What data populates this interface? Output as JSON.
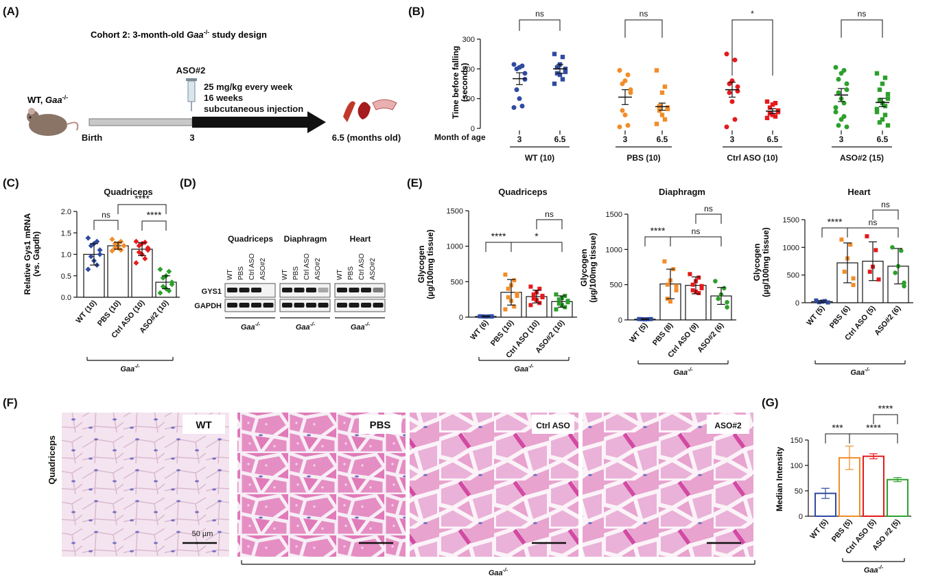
{
  "panel_letters": {
    "A": "(A)",
    "B": "(B)",
    "C": "(C)",
    "D": "(D)",
    "E": "(E)",
    "F": "(F)",
    "G": "(G)"
  },
  "colors": {
    "wt": "#2f4aa0",
    "pbs": "#f28c28",
    "ctrl": "#e41a1c",
    "aso": "#2ca02c",
    "gaa_line": "#111111"
  },
  "design": {
    "title_prefix": "Cohort 2: 3-month-old ",
    "title_gene": "Gaa",
    "title_sup": "-/-",
    "title_suffix": " study design",
    "mouse_label_prefix": "WT, ",
    "mouse_label_gene": "Gaa",
    "mouse_label_sup": "-/-",
    "drug": "ASO#2",
    "dose_line1": "25 mg/kg every week",
    "dose_line2": "16 weeks",
    "dose_line3": "subcutaneous injection",
    "start_label": "Birth",
    "mid_label": "3",
    "end_label": "6.5 (months old)"
  },
  "chart_data": [
    {
      "panel": "B",
      "type": "scatter",
      "ylabel": "Time before falling\n(seconds)",
      "ylim": [
        0,
        300
      ],
      "yticks": [
        0,
        100,
        200,
        300
      ],
      "row_label": "Month of age",
      "groups": [
        {
          "name": "WT (10)",
          "color": "wt",
          "months": [
            "3",
            "6.5"
          ],
          "means": [
            167,
            200
          ],
          "sem": [
            20,
            15
          ],
          "points": [
            [
              215,
              210,
              205,
              200,
              185,
              165,
              130,
              100,
              75,
              70
            ],
            [
              250,
              240,
              215,
              205,
              200,
              190,
              185,
              180,
              165,
              150
            ]
          ],
          "compare": "ns"
        },
        {
          "name": "PBS (10)",
          "color": "pbs",
          "months": [
            "3",
            "6.5"
          ],
          "means": [
            105,
            73
          ],
          "sem": [
            25,
            12
          ],
          "points": [
            [
              195,
              180,
              160,
              150,
              130,
              120,
              60,
              45,
              10,
              5
            ],
            [
              195,
              140,
              120,
              75,
              70,
              65,
              60,
              45,
              30,
              15
            ]
          ],
          "compare": "ns"
        },
        {
          "name": "Ctrl ASO (10)",
          "color": "ctrl",
          "months": [
            "3",
            "6.5"
          ],
          "means": [
            130,
            58
          ],
          "sem": [
            25,
            8
          ],
          "points": [
            [
              250,
              230,
              160,
              150,
              140,
              125,
              120,
              90,
              30,
              5
            ],
            [
              90,
              85,
              80,
              70,
              60,
              55,
              50,
              45,
              40,
              35
            ]
          ],
          "compare": "*"
        },
        {
          "name": "ASO#2 (15)",
          "color": "aso",
          "months": [
            "3",
            "6.5"
          ],
          "means": [
            112,
            87
          ],
          "sem": [
            22,
            14
          ],
          "points": [
            [
              205,
              195,
              185,
              165,
              150,
              130,
              120,
              100,
              85,
              70,
              55,
              40,
              30,
              10,
              5
            ],
            [
              185,
              170,
              150,
              130,
              115,
              100,
              95,
              85,
              75,
              65,
              55,
              45,
              30,
              20,
              10
            ]
          ],
          "compare": "ns"
        }
      ]
    },
    {
      "panel": "C",
      "type": "bar",
      "title": "Quadriceps",
      "ylabel": "Relative Gys1 mRNA\n(vs. Gapdh)",
      "ylim": [
        0,
        2.0
      ],
      "yticks": [
        "0.0",
        "0.5",
        "1.0",
        "1.5",
        "2.0"
      ],
      "categories": [
        "WT (10)",
        "PBS (10)",
        "Ctrl ASO (10)",
        "ASO#2 (10)"
      ],
      "colors": [
        "wt",
        "pbs",
        "ctrl",
        "aso"
      ],
      "values": [
        1.0,
        1.2,
        1.12,
        0.35
      ],
      "sd": [
        0.25,
        0.08,
        0.15,
        0.15
      ],
      "markers": [
        "diamond",
        "diamond",
        "diamond",
        "diamond"
      ],
      "points": [
        [
          1.38,
          1.3,
          1.25,
          1.2,
          1.1,
          1.0,
          0.95,
          0.85,
          0.75,
          0.65
        ],
        [
          1.35,
          1.3,
          1.25,
          1.25,
          1.2,
          1.2,
          1.15,
          1.15,
          1.1,
          1.08
        ],
        [
          1.3,
          1.28,
          1.25,
          1.2,
          1.15,
          1.1,
          1.05,
          1.0,
          0.9,
          0.8
        ],
        [
          0.65,
          0.6,
          0.5,
          0.45,
          0.35,
          0.3,
          0.25,
          0.2,
          0.15,
          0.1
        ]
      ],
      "brackets": [
        {
          "from": 0,
          "to": 1,
          "label": "ns"
        },
        {
          "from": 1,
          "to": 3,
          "label": "****"
        },
        {
          "from": 2,
          "to": 3,
          "label": "****"
        }
      ],
      "group_label": "Gaa",
      "group_sup": "-/-"
    },
    {
      "panel": "E1",
      "type": "bar",
      "title": "Quadriceps",
      "ylabel": "Glycogen\n(µg/100mg tissue)",
      "ylim": [
        0,
        1500
      ],
      "yticks": [
        "0",
        "500",
        "1000",
        "1500"
      ],
      "categories": [
        "WT (6)",
        "PBS (10)",
        "Ctrl ASO (10)",
        "ASO#2 (10)"
      ],
      "colors": [
        "wt",
        "pbs",
        "ctrl",
        "aso"
      ],
      "values": [
        10,
        350,
        290,
        220
      ],
      "sd": [
        5,
        180,
        90,
        80
      ],
      "markers": [
        "square",
        "square",
        "square",
        "square"
      ],
      "points": [
        [
          12,
          10,
          8,
          10,
          12,
          8
        ],
        [
          600,
          520,
          450,
          400,
          330,
          300,
          280,
          230,
          150,
          110
        ],
        [
          430,
          400,
          350,
          320,
          300,
          280,
          260,
          240,
          200,
          170
        ],
        [
          320,
          300,
          270,
          250,
          230,
          210,
          190,
          170,
          140,
          110
        ]
      ],
      "brackets": [
        {
          "from": 0,
          "to": 1,
          "label": "****"
        },
        {
          "from": 2,
          "to": 3,
          "label": "ns"
        },
        {
          "from": 1,
          "to": 3,
          "label": "*"
        }
      ],
      "group_label": "Gaa",
      "group_sup": "-/-"
    },
    {
      "panel": "E2",
      "type": "bar",
      "title": "Diaphragm",
      "ylabel": "Glycogen\n(µg/100mg tissue)",
      "ylim": [
        0,
        1500
      ],
      "yticks": [
        "0",
        "500",
        "1000",
        "1500"
      ],
      "categories": [
        "WT (5)",
        "PBS (8)",
        "Ctrl ASO (9)",
        "ASO#2 (6)"
      ],
      "colors": [
        "wt",
        "pbs",
        "ctrl",
        "aso"
      ],
      "values": [
        10,
        510,
        490,
        340
      ],
      "sd": [
        5,
        210,
        120,
        120
      ],
      "markers": [
        "square",
        "square",
        "square",
        "circle"
      ],
      "points": [
        [
          12,
          10,
          8,
          10,
          12
        ],
        [
          830,
          720,
          560,
          500,
          480,
          420,
          300,
          260
        ],
        [
          650,
          600,
          550,
          500,
          480,
          450,
          420,
          400,
          380
        ],
        [
          550,
          450,
          360,
          300,
          250,
          180
        ]
      ],
      "brackets": [
        {
          "from": 0,
          "to": 1,
          "label": "****"
        },
        {
          "from": 2,
          "to": 3,
          "label": "ns"
        },
        {
          "from": 1,
          "to": 3,
          "label": "ns"
        }
      ],
      "group_label": "Gaa",
      "group_sup": "-/-"
    },
    {
      "panel": "E3",
      "type": "bar",
      "title": "Heart",
      "ylabel": "Glycogen\n(µg/100mg tissue)",
      "ylim": [
        0,
        1500
      ],
      "yticks": [
        "0",
        "500",
        "1000",
        "1500"
      ],
      "categories": [
        "WT (5)",
        "PBS (6)",
        "Ctrl ASO (5)",
        "ASO#2 (6)"
      ],
      "colors": [
        "wt",
        "pbs",
        "ctrl",
        "aso"
      ],
      "values": [
        20,
        720,
        750,
        660
      ],
      "sd": [
        15,
        360,
        350,
        320
      ],
      "markers": [
        "square",
        "square",
        "square",
        "circle"
      ],
      "points": [
        [
          40,
          30,
          20,
          10,
          5
        ],
        [
          1140,
          1050,
          800,
          560,
          440,
          320
        ],
        [
          1200,
          950,
          650,
          560,
          420
        ],
        [
          1000,
          940,
          660,
          540,
          360,
          300
        ]
      ],
      "brackets": [
        {
          "from": 0,
          "to": 1,
          "label": "****"
        },
        {
          "from": 2,
          "to": 3,
          "label": "ns"
        },
        {
          "from": 1,
          "to": 3,
          "label": "ns"
        }
      ],
      "group_label": "Gaa",
      "group_sup": "-/-"
    },
    {
      "panel": "G",
      "type": "bar",
      "ylabel": "Median Intensity",
      "ylim": [
        0,
        150
      ],
      "yticks": [
        "0",
        "50",
        "100",
        "150"
      ],
      "categories": [
        "WT (5)",
        "PBS (5)",
        "Ctrl ASO (5)",
        "ASO #2 (5)"
      ],
      "colors": [
        "wt",
        "pbs",
        "ctrl",
        "aso"
      ],
      "values": [
        45,
        115,
        118,
        72
      ],
      "sd": [
        10,
        23,
        5,
        4
      ],
      "brackets": [
        {
          "from": 0,
          "to": 1,
          "label": "***"
        },
        {
          "from": 2,
          "to": 3,
          "label": "****"
        },
        {
          "from": 1,
          "to": 3,
          "label": "****"
        }
      ],
      "group_label": "Gaa",
      "group_sup": "-/-"
    }
  ],
  "western": {
    "tissues": [
      "Quadriceps",
      "Diaphragm",
      "Heart"
    ],
    "lanes": [
      "WT",
      "PBS",
      "Ctrl ASO",
      "ASO#2"
    ],
    "rows": [
      "GYS1",
      "GAPDH"
    ],
    "gys1_intensity": [
      [
        1,
        1,
        1,
        0
      ],
      [
        1,
        1,
        1,
        0.35
      ],
      [
        1,
        1,
        1,
        0.55
      ]
    ],
    "group_label": "Gaa",
    "group_sup": "-/-"
  },
  "histology": {
    "row_label": "Quadriceps",
    "panels": [
      "WT",
      "PBS",
      "Ctrl ASO",
      "ASO#2"
    ],
    "scale_label": "50 µm",
    "group_label": "Gaa",
    "group_sup": "-/-"
  }
}
